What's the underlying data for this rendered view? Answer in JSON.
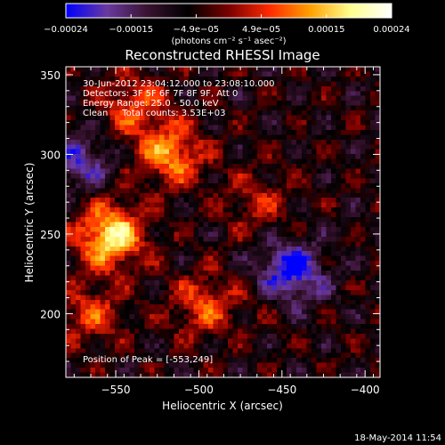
{
  "chart_data": {
    "type": "heatmap",
    "title": "Reconstructed RHESSI Image",
    "xlabel": "Heliocentric X (arcsec)",
    "ylabel": "Heliocentric Y (arcsec)",
    "xlim": [
      -580,
      -391
    ],
    "ylim": [
      160,
      355
    ],
    "x_ticks": [
      -550,
      -500,
      -450,
      -400
    ],
    "x_tick_labels": [
      "−550",
      "−500",
      "−450",
      "−400"
    ],
    "y_ticks": [
      200,
      250,
      300,
      350
    ],
    "y_tick_labels": [
      "200",
      "250",
      "300",
      "350"
    ],
    "colorscale": {
      "range": [
        -0.00024,
        0.00024
      ],
      "tick_labels": [
        "−0.00024",
        "−0.00015",
        "−4.9e−05",
        "4.9e−05",
        "0.00015",
        "0.00024"
      ],
      "unit_label": "(photons cm⁻² s⁻¹ asec⁻²)",
      "colors": [
        "#0000ff",
        "#6a3aa0",
        "#3a1230",
        "#000000",
        "#7a0000",
        "#ff2a00",
        "#ffa000",
        "#ffff90",
        "#ffffff"
      ]
    },
    "annotations": [
      "30-Jun-2012 23:04:12.000 to 23:08:10.000",
      "Detectors: 3F 5F 6F 7F 8F 9F, Att 0",
      "Energy Range: 25.0 - 50.0 keV",
      "Clean     Total counts: 3.53E+03"
    ],
    "peak_label": "Position of Peak = [-553,249]",
    "peak": {
      "x": -553,
      "y": 249
    },
    "sources": [
      {
        "x": -553,
        "y": 249,
        "value": 0.00024
      },
      {
        "x": -517,
        "y": 300,
        "value": 0.00017
      },
      {
        "x": -540,
        "y": 330,
        "value": 0.00012
      },
      {
        "x": -497,
        "y": 205,
        "value": 0.00012
      },
      {
        "x": -565,
        "y": 200,
        "value": 0.00011
      },
      {
        "x": -465,
        "y": 270,
        "value": 8e-05
      },
      {
        "x": -455,
        "y": 215,
        "value": 6e-05
      }
    ],
    "negative_regions": [
      {
        "x": -446,
        "y": 225,
        "value": -0.00022
      },
      {
        "x": -572,
        "y": 295,
        "value": -0.00012
      }
    ],
    "grid": false
  },
  "footer": {
    "date": "18-May-2014 11:54"
  }
}
